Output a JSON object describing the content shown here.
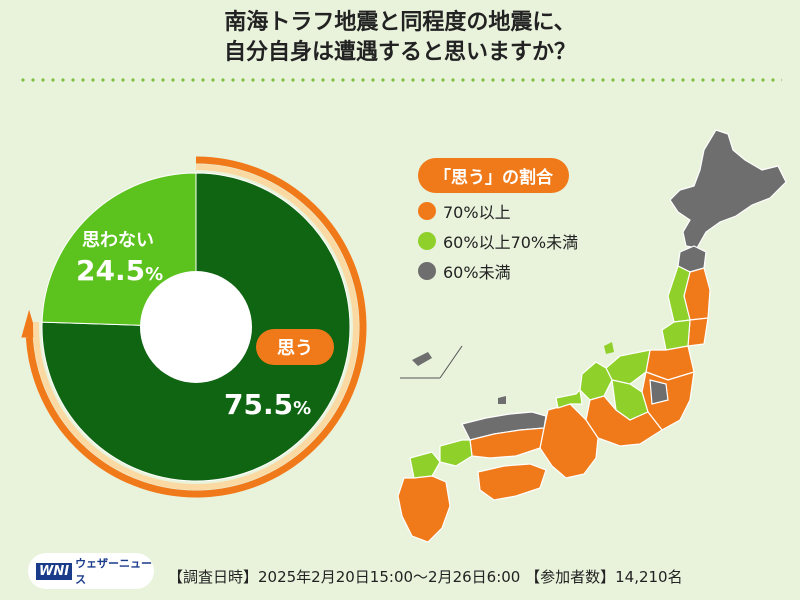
{
  "title_line1": "南海トラフ地震と同程度の地震に、",
  "title_line2": "自分自身は遭遇すると思いますか？",
  "chart_data": {
    "type": "pie",
    "categories": [
      "思う",
      "思わない"
    ],
    "values": [
      75.5,
      24.5
    ],
    "value_labels": [
      "75.5",
      "24.5"
    ],
    "percent_sign": "%",
    "colors": [
      "#0f6512",
      "#5cc21e"
    ]
  },
  "legend": {
    "title": "「思う」の割合",
    "items": [
      {
        "label": "70%以上",
        "color": "#f07a1a"
      },
      {
        "label": "60%以上70%未満",
        "color": "#8fd12a"
      },
      {
        "label": "60%未満",
        "color": "#6e6e6e"
      }
    ]
  },
  "logo": {
    "mark": "WNI",
    "text": "ウェザーニュース"
  },
  "footer": "【調査日時】2025年2月20日15:00～2月26日6:00 【参加者数】14,210名"
}
